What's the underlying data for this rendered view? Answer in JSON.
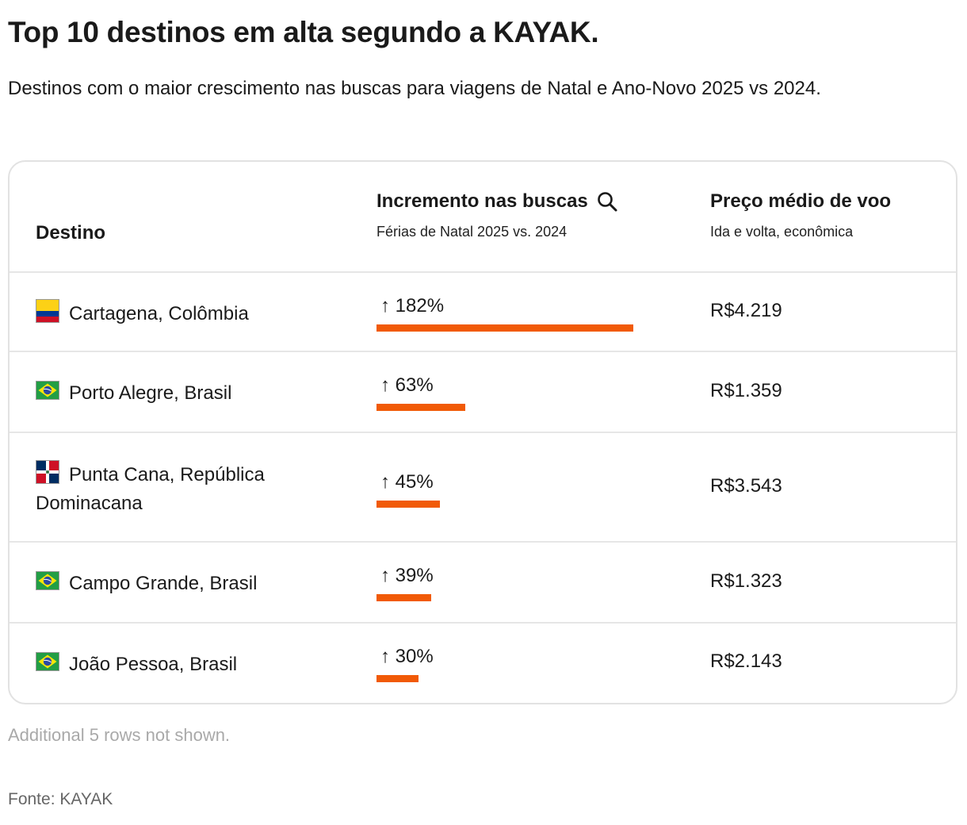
{
  "header": {
    "title": "Top 10 destinos em alta segundo a KAYAK.",
    "subtitle": "Destinos com o maior crescimento nas buscas para viagens de Natal e Ano-Novo 2025 vs 2024."
  },
  "table": {
    "col_destination": "Destino",
    "col_increase": "Incremento nas buscas",
    "col_increase_sub": "Férias de Natal 2025 vs. 2024",
    "col_price": "Preço médio de voo",
    "col_price_sub": "Ida e volta, econômica"
  },
  "chart_data": {
    "type": "table",
    "columns": [
      "Destino",
      "Incremento nas buscas",
      "Preço médio de voo"
    ],
    "rows": [
      {
        "destination": "Cartagena, Colômbia",
        "flag": "colombia-flag-icon",
        "increase_pct": 182,
        "increase_label": "↑ 182%",
        "price": "R$4.219"
      },
      {
        "destination": "Porto Alegre, Brasil",
        "flag": "brazil-flag-icon",
        "increase_pct": 63,
        "increase_label": "↑ 63%",
        "price": "R$1.359"
      },
      {
        "destination": "Punta Cana, República Dominacana",
        "flag": "dominican-republic-flag-icon",
        "increase_pct": 45,
        "increase_label": "↑ 45%",
        "price": "R$3.543"
      },
      {
        "destination": "Campo Grande, Brasil",
        "flag": "brazil-flag-icon",
        "increase_pct": 39,
        "increase_label": "↑ 39%",
        "price": "R$1.323"
      },
      {
        "destination": "João Pessoa, Brasil",
        "flag": "brazil-flag-icon",
        "increase_pct": 30,
        "increase_label": "↑ 30%",
        "price": "R$2.143"
      }
    ],
    "bar_color": "#f15a07"
  },
  "footer": {
    "note": "Additional 5 rows not shown.",
    "source": "Fonte: KAYAK"
  }
}
